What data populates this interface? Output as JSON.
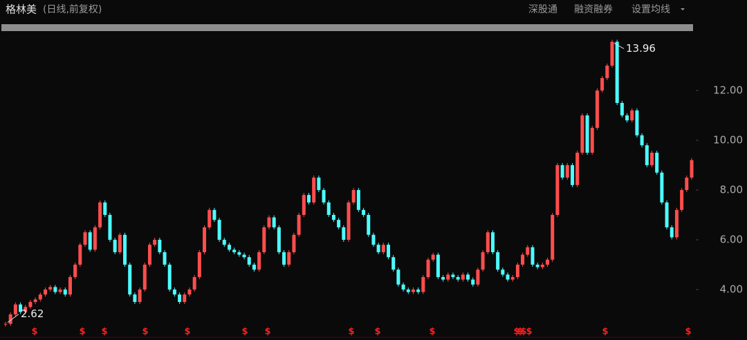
{
  "header": {
    "name": "格林美",
    "mode": "(日线,前复权)",
    "actions": [
      "深股通",
      "融资融券",
      "设置均线"
    ]
  },
  "chart_data": {
    "type": "candlestick-close",
    "values": [
      2.62,
      3.0,
      3.4,
      3.1,
      3.3,
      3.5,
      3.6,
      3.8,
      4.0,
      4.1,
      3.9,
      4.0,
      3.8,
      4.5,
      5.0,
      5.8,
      6.3,
      5.6,
      6.5,
      7.5,
      7.0,
      6.0,
      5.5,
      6.2,
      5.0,
      3.8,
      3.5,
      4.0,
      5.0,
      5.8,
      6.0,
      5.5,
      5.0,
      4.0,
      3.8,
      3.5,
      3.8,
      4.0,
      4.5,
      5.5,
      6.5,
      7.2,
      6.8,
      6.0,
      5.8,
      5.6,
      5.5,
      5.4,
      5.3,
      5.0,
      4.8,
      5.5,
      6.5,
      6.9,
      6.5,
      5.5,
      5.0,
      5.5,
      6.2,
      7.0,
      7.8,
      7.5,
      8.5,
      8.0,
      7.5,
      7.0,
      6.8,
      6.5,
      6.0,
      7.5,
      8.0,
      7.2,
      7.0,
      6.2,
      5.8,
      5.5,
      5.8,
      5.3,
      4.8,
      4.2,
      4.0,
      3.9,
      4.0,
      3.9,
      4.5,
      5.2,
      5.4,
      4.5,
      4.4,
      4.6,
      4.5,
      4.4,
      4.6,
      4.4,
      4.2,
      4.8,
      5.5,
      6.3,
      5.5,
      4.8,
      4.6,
      4.4,
      4.5,
      5.0,
      5.4,
      5.7,
      5.0,
      4.9,
      5.0,
      5.2,
      7.0,
      9.0,
      8.5,
      9.0,
      8.2,
      9.5,
      11.0,
      9.5,
      10.5,
      12.0,
      12.5,
      13.0,
      13.96,
      11.5,
      11.0,
      10.8,
      11.2,
      10.2,
      9.8,
      9.0,
      9.5,
      8.7,
      7.5,
      6.5,
      6.1,
      7.2,
      8.0,
      8.5,
      9.2
    ],
    "up_color": "#ff4d4d",
    "down_color": "#4dfcff",
    "ylim": [
      2.36,
      14.25
    ],
    "yticks": [
      {
        "value": 4,
        "label": "4.00"
      },
      {
        "value": 6,
        "label": "6.00"
      },
      {
        "value": 8,
        "label": "8.00"
      },
      {
        "value": 10,
        "label": "10.00"
      },
      {
        "value": 12,
        "label": "12.00"
      }
    ],
    "max_label": 13.96,
    "min_label": 2.62
  }
}
